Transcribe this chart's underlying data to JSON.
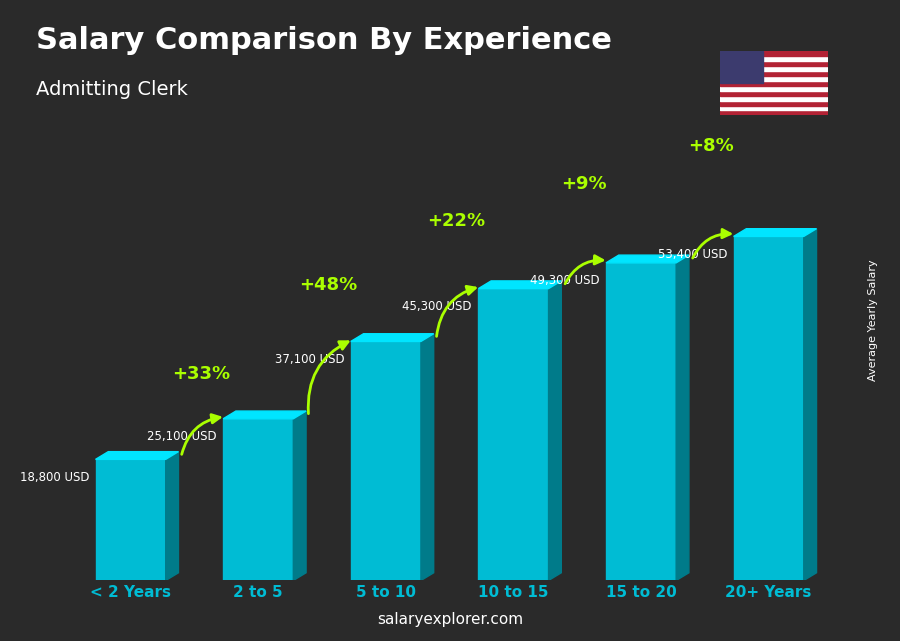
{
  "title": "Salary Comparison By Experience",
  "subtitle": "Admitting Clerk",
  "categories": [
    "< 2 Years",
    "2 to 5",
    "5 to 10",
    "10 to 15",
    "15 to 20",
    "20+ Years"
  ],
  "values": [
    18800,
    25100,
    37100,
    45300,
    49300,
    53400
  ],
  "salary_labels": [
    "18,800 USD",
    "25,100 USD",
    "37,100 USD",
    "45,300 USD",
    "49,300 USD",
    "53,400 USD"
  ],
  "pct_labels": [
    "+33%",
    "+48%",
    "+22%",
    "+9%",
    "+8%"
  ],
  "bar_color_face": "#00bcd4",
  "bar_color_light": "#4dd0e1",
  "bar_color_dark": "#0097a7",
  "bar_color_side": "#006064",
  "arrow_color": "#aaff00",
  "title_color": "#ffffff",
  "subtitle_color": "#ffffff",
  "salary_label_color": "#ffffff",
  "xlabel_color": "#00bcd4",
  "ylabel_text": "Average Yearly Salary",
  "footer_text": "salaryexplorer.com",
  "footer_bold": "salaryexplorer",
  "background_color": "#3a3a3a",
  "ylim": [
    0,
    62000
  ],
  "bar_width": 0.55,
  "depth": 0.025
}
